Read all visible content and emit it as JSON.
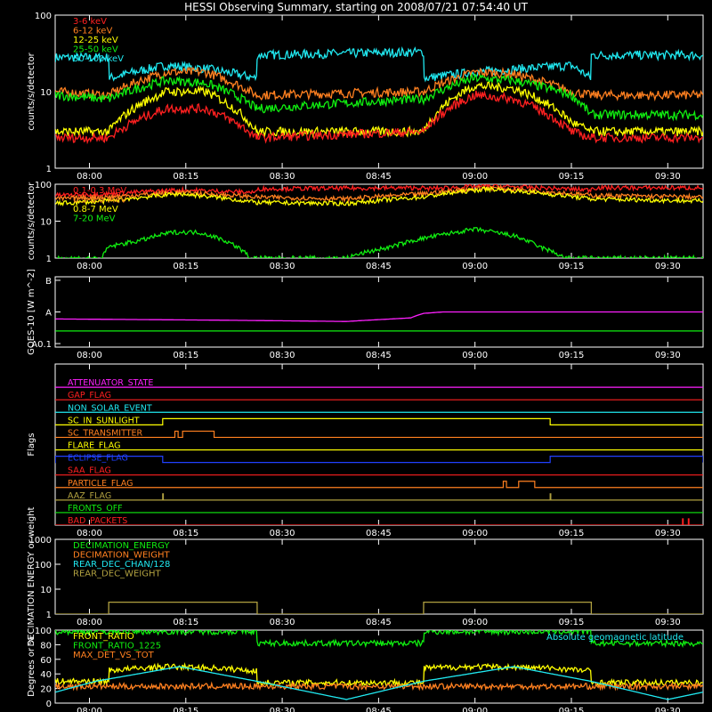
{
  "title": "HESSI Observing Summary, starting on 2008/07/21 07:54:40 UT",
  "x_ticks": [
    "08:00",
    "08:15",
    "08:30",
    "08:45",
    "09:00",
    "09:15",
    "09:30"
  ],
  "x_tick_minutes": [
    0,
    15,
    30,
    45,
    60,
    75,
    90
  ],
  "colors": {
    "red": "#ff2020",
    "orange": "#ff8020",
    "yellow": "#ffff00",
    "green": "#10ee10",
    "cyan": "#20e8f0",
    "magenta": "#ff20ff",
    "blue": "#2040ff",
    "olive": "#b0a040",
    "axis": "#ffffff",
    "bg": "#000000"
  },
  "chart_data": [
    {
      "id": "lo-energy",
      "type": "line",
      "ylabel": "counts/s/detector",
      "y_scale": "log",
      "ylim": [
        1,
        100
      ],
      "y_ticks": [
        "1",
        "10",
        "100"
      ],
      "x_unit": "minutes after 08:00",
      "xlim": [
        -5.33,
        95.5
      ],
      "legend": [
        {
          "label": "3-6 keV",
          "color": "red"
        },
        {
          "label": "6-12 keV",
          "color": "orange"
        },
        {
          "label": "12-25 keV",
          "color": "yellow"
        },
        {
          "label": "25-50 keV",
          "color": "green"
        },
        {
          "label": "50-100 keV",
          "color": "cyan"
        }
      ],
      "series": [
        {
          "name": "50-100 keV",
          "color": "cyan",
          "x": [
            -5.3,
            3.0,
            3.1,
            12.0,
            18.0,
            26.0,
            26.1,
            52.0,
            52.1,
            60.0,
            75.0,
            78.0,
            78.1,
            95.5
          ],
          "y": [
            28,
            28,
            15,
            22,
            20,
            15,
            30,
            33,
            15,
            18,
            22,
            15,
            30,
            30
          ]
        },
        {
          "name": "6-12 keV",
          "color": "orange",
          "x": [
            -5.3,
            3.0,
            12.0,
            18.0,
            26.0,
            26.1,
            52.0,
            60.0,
            66.0,
            75.0,
            78.0,
            95.5
          ],
          "y": [
            10,
            9,
            18,
            18,
            9,
            9,
            10,
            18,
            17,
            10,
            9,
            9
          ]
        },
        {
          "name": "25-50 keV",
          "color": "green",
          "x": [
            -5.3,
            3.0,
            12.0,
            18.0,
            26.0,
            26.1,
            52.0,
            60.0,
            66.0,
            75.0,
            78.0,
            95.5
          ],
          "y": [
            9,
            8,
            14,
            13,
            6,
            6,
            8,
            15,
            14,
            9,
            5,
            5
          ]
        },
        {
          "name": "12-25 keV",
          "color": "yellow",
          "x": [
            -5.3,
            3.0,
            12.0,
            18.0,
            26.0,
            26.1,
            52.0,
            60.0,
            66.0,
            75.0,
            78.0,
            95.5
          ],
          "y": [
            3,
            3,
            10,
            10,
            3,
            3,
            3,
            12,
            11,
            4,
            3,
            3
          ]
        },
        {
          "name": "3-6 keV",
          "color": "red",
          "x": [
            -5.3,
            3.0,
            12.0,
            18.0,
            26.0,
            26.1,
            52.0,
            60.0,
            66.0,
            75.0,
            78.0,
            95.5
          ],
          "y": [
            2.5,
            2.5,
            6,
            6,
            2.5,
            2.5,
            3,
            9,
            8,
            3,
            2.5,
            2.5
          ]
        }
      ]
    },
    {
      "id": "hi-energy",
      "type": "line",
      "ylabel": "counts/s/detector",
      "y_scale": "log",
      "ylim": [
        1,
        100
      ],
      "y_ticks": [
        "1",
        "10",
        "100"
      ],
      "xlim": [
        -5.33,
        95.5
      ],
      "legend": [
        {
          "label": "0.1-0.3 MeV",
          "color": "red"
        },
        {
          "label": "0.3-0.8 MeV",
          "color": "orange"
        },
        {
          "label": "0.8-7 MeV",
          "color": "yellow"
        },
        {
          "label": "7-20 MeV",
          "color": "green"
        }
      ],
      "series": [
        {
          "name": "0.1-0.3 MeV",
          "color": "red",
          "x": [
            -5.3,
            3.0,
            14.0,
            26.0,
            26.1,
            52.0,
            52.1,
            62.0,
            78.0,
            78.1,
            95.5
          ],
          "y": [
            50,
            55,
            70,
            60,
            75,
            80,
            75,
            90,
            70,
            80,
            80
          ]
        },
        {
          "name": "0.3-0.8 MeV",
          "color": "orange",
          "x": [
            -5.3,
            3.0,
            14.0,
            26.0,
            40.0,
            52.0,
            62.0,
            78.0,
            95.5
          ],
          "y": [
            40,
            45,
            60,
            45,
            40,
            55,
            80,
            50,
            45
          ]
        },
        {
          "name": "0.8-7 MeV",
          "color": "yellow",
          "x": [
            -5.3,
            3.0,
            14.0,
            26.0,
            40.0,
            52.0,
            62.0,
            78.0,
            95.5
          ],
          "y": [
            30,
            35,
            55,
            32,
            30,
            45,
            75,
            40,
            35
          ]
        },
        {
          "name": "7-20 MeV",
          "color": "green",
          "x": [
            -5.3,
            2.0,
            3.0,
            8.0,
            13.0,
            17.0,
            21.0,
            25.0,
            40.0,
            47.0,
            54.0,
            60.0,
            66.0,
            70.0,
            74.0,
            95.5
          ],
          "y": [
            1,
            1,
            2,
            3,
            5,
            5,
            3,
            1,
            1,
            2,
            4,
            6,
            4,
            2,
            1,
            1
          ]
        }
      ]
    },
    {
      "id": "goes",
      "type": "line",
      "ylabel": "GOES-10 [W m^-2]",
      "y_scale": "log",
      "y_ticks": [
        "A0.1",
        "A",
        "B"
      ],
      "xlim": [
        -5.33,
        95.5
      ],
      "series": [
        {
          "name": "",
          "color": "magenta",
          "x": [
            -5.3,
            20.0,
            40.0,
            47.0,
            50.0,
            52.0,
            55.0,
            95.5
          ],
          "y": [
            0.6,
            0.55,
            0.5,
            0.6,
            0.65,
            0.9,
            1.0,
            1.0
          ]
        },
        {
          "name": "",
          "color": "green",
          "x": [
            -5.3,
            95.5
          ],
          "y": [
            0.25,
            0.25
          ]
        }
      ]
    },
    {
      "id": "flags",
      "type": "line",
      "ylabel": "Flags",
      "xlim": [
        -5.33,
        95.5
      ],
      "flags": [
        {
          "label": "ATTENUATOR_STATE",
          "color": "magenta",
          "high": []
        },
        {
          "label": "GAP_FLAG",
          "color": "red",
          "high": []
        },
        {
          "label": "NON_SOLAR_EVENT",
          "color": "cyan",
          "high": []
        },
        {
          "label": "SC_IN_SUNLIGHT",
          "color": "yellow",
          "high": [
            [
              11.4,
              71.7
            ]
          ]
        },
        {
          "label": "SC_TRANSMITTER",
          "color": "orange",
          "high": [
            [
              13.3,
              13.8
            ],
            [
              14.5,
              19.4
            ]
          ]
        },
        {
          "label": "FLARE_FLAG",
          "color": "yellow",
          "high": []
        },
        {
          "label": "ECLIPSE_FLAG",
          "color": "blue",
          "high": [
            [
              -5.3,
              11.4
            ],
            [
              71.7,
              95.5
            ]
          ]
        },
        {
          "label": "SAA_FLAG",
          "color": "red",
          "high": []
        },
        {
          "label": "PARTICLE_FLAG",
          "color": "orange",
          "high": [
            [
              64.4,
              64.9
            ],
            [
              66.8,
              69.3
            ]
          ]
        },
        {
          "label": "AAZ_FLAG",
          "color": "olive",
          "high": [
            [
              11.4,
              11.5
            ],
            [
              71.7,
              71.8
            ]
          ]
        },
        {
          "label": "FRONTS_OFF",
          "color": "green",
          "high": []
        },
        {
          "label": "BAD_PACKETS",
          "color": "red",
          "high": [
            [
              92.3,
              92.4
            ],
            [
              93.2,
              93.3
            ]
          ]
        }
      ]
    },
    {
      "id": "decimation",
      "type": "line",
      "ylabel": "DECIMATION ENERGY or weight",
      "y_scale": "log",
      "ylim": [
        1,
        1000
      ],
      "y_ticks": [
        "1",
        "10",
        "100",
        "1000"
      ],
      "xlim": [
        -5.33,
        95.5
      ],
      "legend": [
        {
          "label": "DECIMATION_ENERGY",
          "color": "green"
        },
        {
          "label": "DECIMATION_WEIGHT",
          "color": "orange"
        },
        {
          "label": "REAR_DEC_CHAN/128",
          "color": "cyan"
        },
        {
          "label": "REAR_DEC_WEIGHT",
          "color": "olive"
        }
      ],
      "series": [
        {
          "name": "REAR_DEC_WEIGHT",
          "color": "olive",
          "x": [
            -5.3,
            3.0,
            3.01,
            26.1,
            26.11,
            52.0,
            52.01,
            78.1,
            78.11,
            95.5
          ],
          "y": [
            1,
            1,
            3,
            3,
            1,
            1,
            3,
            3,
            1,
            1
          ]
        }
      ]
    },
    {
      "id": "ratios",
      "type": "line",
      "ylabel": "Degrees or %",
      "ylim": [
        0,
        100
      ],
      "y_ticks": [
        "0",
        "20",
        "40",
        "60",
        "80",
        "100"
      ],
      "xlim": [
        -5.33,
        95.5
      ],
      "legend": [
        {
          "label": "FRONT_RATIO",
          "color": "yellow"
        },
        {
          "label": "FRONT_RATIO_1225",
          "color": "green"
        },
        {
          "label": "MAX_DET_VS_TOT",
          "color": "orange"
        }
      ],
      "annotation": {
        "label": "Absolute geomagnetic latitude",
        "color": "cyan"
      },
      "series": [
        {
          "name": "FRONT_RATIO_1225",
          "color": "green",
          "x": [
            -5.3,
            26.0,
            26.1,
            52.0,
            52.1,
            78.0,
            78.1,
            95.5
          ],
          "y": [
            98,
            98,
            82,
            82,
            98,
            98,
            82,
            82
          ]
        },
        {
          "name": "FRONT_RATIO",
          "color": "yellow",
          "x": [
            -5.3,
            3.0,
            3.1,
            12.0,
            20.0,
            26.0,
            26.1,
            52.0,
            52.1,
            60.0,
            72.0,
            78.0,
            78.1,
            95.5
          ],
          "y": [
            30,
            30,
            45,
            50,
            48,
            44,
            28,
            28,
            48,
            50,
            48,
            44,
            28,
            28
          ]
        },
        {
          "name": "MAX_DET_VS_TOT",
          "color": "orange",
          "x": [
            -5.3,
            95.5
          ],
          "y": [
            23,
            23
          ]
        },
        {
          "name": "Absolute geomagnetic latitude",
          "color": "cyan",
          "x": [
            -5.3,
            1.0,
            14.0,
            26.0,
            40.0,
            52.0,
            66.0,
            78.0,
            90.0,
            95.5
          ],
          "y": [
            15,
            30,
            50,
            30,
            5,
            30,
            50,
            30,
            5,
            15
          ]
        }
      ]
    }
  ]
}
